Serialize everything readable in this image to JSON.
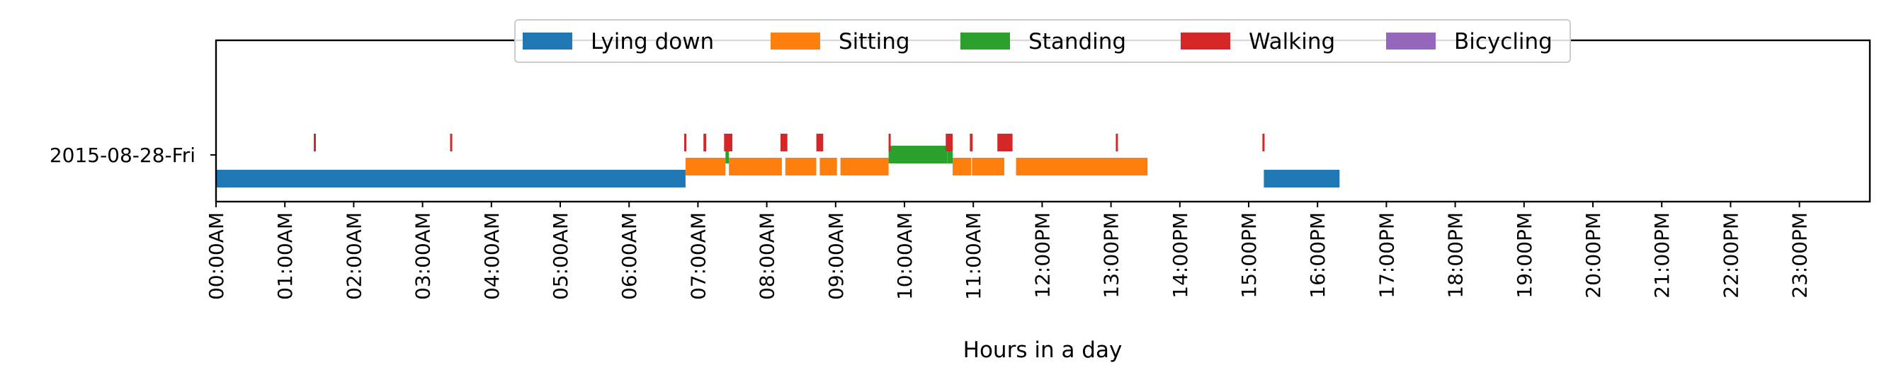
{
  "chart_data": {
    "type": "timeline",
    "title": "",
    "xlabel": "Hours in a day",
    "ylabel": "",
    "xlim": [
      0,
      24
    ],
    "grid": false,
    "legend_position": "top-center",
    "row_label": "2015-08-28-Fri",
    "x_ticks": [
      {
        "hour": 0,
        "label": "00:00AM"
      },
      {
        "hour": 1,
        "label": "01:00AM"
      },
      {
        "hour": 2,
        "label": "02:00AM"
      },
      {
        "hour": 3,
        "label": "03:00AM"
      },
      {
        "hour": 4,
        "label": "04:00AM"
      },
      {
        "hour": 5,
        "label": "05:00AM"
      },
      {
        "hour": 6,
        "label": "06:00AM"
      },
      {
        "hour": 7,
        "label": "07:00AM"
      },
      {
        "hour": 8,
        "label": "08:00AM"
      },
      {
        "hour": 9,
        "label": "09:00AM"
      },
      {
        "hour": 10,
        "label": "10:00AM"
      },
      {
        "hour": 11,
        "label": "11:00AM"
      },
      {
        "hour": 12,
        "label": "12:00PM"
      },
      {
        "hour": 13,
        "label": "13:00PM"
      },
      {
        "hour": 14,
        "label": "14:00PM"
      },
      {
        "hour": 15,
        "label": "15:00PM"
      },
      {
        "hour": 16,
        "label": "16:00PM"
      },
      {
        "hour": 17,
        "label": "17:00PM"
      },
      {
        "hour": 18,
        "label": "18:00PM"
      },
      {
        "hour": 19,
        "label": "19:00PM"
      },
      {
        "hour": 20,
        "label": "20:00PM"
      },
      {
        "hour": 21,
        "label": "21:00PM"
      },
      {
        "hour": 22,
        "label": "22:00PM"
      },
      {
        "hour": 23,
        "label": "23:00PM"
      }
    ],
    "series": [
      {
        "name": "Lying down",
        "color": "#1f77b4",
        "intervals": [
          [
            0.0,
            6.82
          ],
          [
            15.22,
            16.32
          ]
        ]
      },
      {
        "name": "Sitting",
        "color": "#ff7f0e",
        "intervals": [
          [
            6.82,
            7.4
          ],
          [
            7.45,
            8.22
          ],
          [
            8.27,
            8.72
          ],
          [
            8.77,
            9.02
          ],
          [
            9.07,
            9.77
          ],
          [
            10.7,
            10.97
          ],
          [
            10.98,
            11.45
          ],
          [
            11.62,
            13.53
          ]
        ]
      },
      {
        "name": "Standing",
        "color": "#2ca02c",
        "intervals": [
          [
            7.4,
            7.45
          ],
          [
            9.77,
            10.62
          ],
          [
            10.62,
            10.7
          ]
        ]
      },
      {
        "name": "Walking",
        "color": "#d62728",
        "intervals": [
          [
            1.42,
            1.45
          ],
          [
            3.4,
            3.43
          ],
          [
            6.8,
            6.83
          ],
          [
            7.08,
            7.12
          ],
          [
            7.38,
            7.5
          ],
          [
            8.2,
            8.3
          ],
          [
            8.72,
            8.82
          ],
          [
            9.77,
            9.8
          ],
          [
            10.6,
            10.7
          ],
          [
            10.95,
            10.99
          ],
          [
            11.35,
            11.57
          ],
          [
            13.07,
            13.1
          ],
          [
            15.2,
            15.23
          ]
        ]
      },
      {
        "name": "Bicycling",
        "color": "#9467bd",
        "intervals": []
      }
    ]
  }
}
